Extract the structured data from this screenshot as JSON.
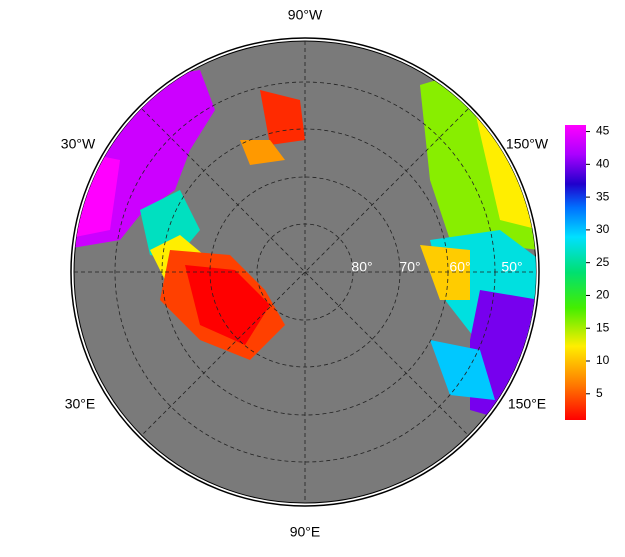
{
  "map": {
    "longitude_labels": [
      "90°W",
      "30°W",
      "150°W",
      "30°E",
      "150°E",
      "90°E"
    ],
    "latitude_labels": [
      "80°",
      "70°",
      "60°",
      "50°"
    ],
    "colorbar": {
      "range": [
        1,
        46
      ],
      "ticks": [
        5,
        10,
        15,
        20,
        25,
        30,
        35,
        40,
        45
      ]
    }
  }
}
